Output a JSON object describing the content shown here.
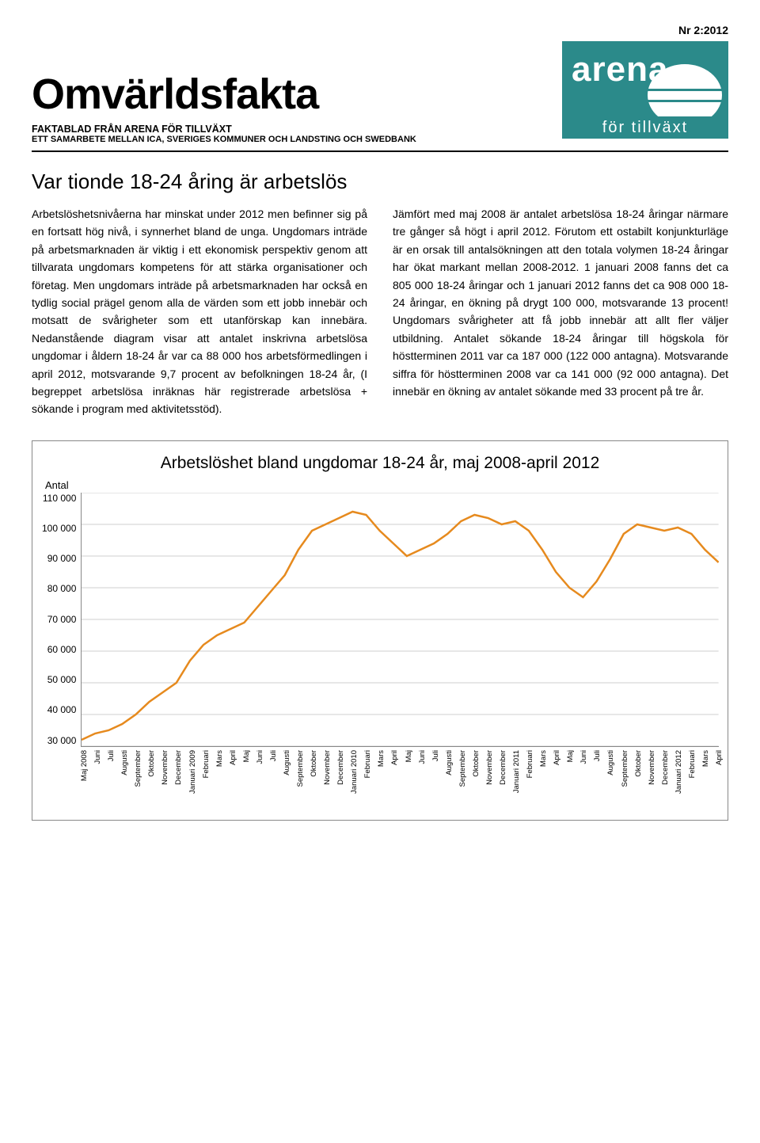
{
  "issue_label": "Nr 2:2012",
  "header": {
    "title": "Omvärldsfakta",
    "subtitle1": "FAKTABLAD FRÅN ARENA FÖR TILLVÄXT",
    "subtitle2": "ETT SAMARBETE MELLAN ICA, SVERIGES KOMMUNER OCH LANDSTING OCH SWEDBANK",
    "logo_top": "arena",
    "logo_bottom": "för tillväxt",
    "logo_bg": "#2b8a8a",
    "logo_circle": "#ffffff",
    "logo_text": "#ffffff"
  },
  "article": {
    "headline": "Var tionde 18-24 åring är arbetslös",
    "col1": "Arbetslöshetsnivåerna har minskat under 2012 men befinner sig på en fortsatt hög nivå, i synnerhet bland de unga. Ungdomars inträde på arbetsmarknaden är viktig i ett ekonomisk perspektiv genom att tillvarata ungdomars kompetens för att stärka organisationer och företag. Men ungdomars inträde på arbetsmarknaden har också en tydlig social prägel genom alla de värden som ett jobb innebär och motsatt de svårigheter som ett utanförskap kan innebära.    Nedanstående diagram visar att antalet inskrivna arbetslösa ungdomar i åldern 18-24 år var  ca 88 000 hos arbetsförmedlingen i april 2012, motsvarande 9,7 procent av befolkningen 18-24 år, (I begreppet arbetslösa inräknas här registrerade arbetslösa + sökande i program med aktivitetsstöd).",
    "col2": "Jämfört med maj 2008 är antalet arbetslösa 18-24 åringar närmare tre gånger så högt i april 2012. Förutom ett ostabilt konjunkturläge är en orsak till antalsökningen att den totala volymen 18-24 åringar har ökat markant mellan 2008-2012. 1 januari 2008 fanns det ca 805 000 18-24 åringar och 1 januari 2012 fanns det ca 908 000 18-24 åringar, en ökning på drygt 100 000, motsvarande 13 procent!  Ungdomars svårigheter att få jobb innebär att allt fler väljer utbildning. Antalet sökande 18-24 åringar till högskola för höstterminen 2011 var ca 187 000 (122 000 antagna). Motsvarande siffra för höstterminen 2008 var ca 141 000 (92 000 antagna). Det innebär en ökning av antalet sökande med 33 procent på tre år."
  },
  "chart": {
    "title": "Arbetslöshet bland ungdomar 18-24 år, maj 2008-april 2012",
    "type": "line",
    "ylabel": "Antal",
    "ylim": [
      30000,
      110000
    ],
    "ytick_step": 10000,
    "yticks": [
      "110 000",
      "100 000",
      "90 000",
      "80 000",
      "70 000",
      "60 000",
      "50 000",
      "40 000",
      "30 000"
    ],
    "line_color": "#e68a1e",
    "line_width": 2.5,
    "grid_color": "#cfcfcf",
    "background_color": "#ffffff",
    "x_labels": [
      "Maj 2008",
      "Juni",
      "Juli",
      "Augusti",
      "September",
      "Oktober",
      "November",
      "December",
      "Januari 2009",
      "Februari",
      "Mars",
      "April",
      "Maj",
      "Juni",
      "Juli",
      "Augusti",
      "September",
      "Oktober",
      "November",
      "December",
      "Januari 2010",
      "Februari",
      "Mars",
      "April",
      "Maj",
      "Juni",
      "Juli",
      "Augusti",
      "September",
      "Oktober",
      "November",
      "December",
      "Januari 2011",
      "Februari",
      "Mars",
      "April",
      "Maj",
      "Juni",
      "Juli",
      "Augusti",
      "September",
      "Oktober",
      "November",
      "December",
      "Januari 2012",
      "Februari",
      "Mars",
      "April"
    ],
    "values": [
      32000,
      34000,
      35000,
      37000,
      40000,
      44000,
      47000,
      50000,
      57000,
      62000,
      65000,
      67000,
      69000,
      74000,
      79000,
      84000,
      92000,
      98000,
      100000,
      102000,
      104000,
      103000,
      98000,
      94000,
      90000,
      92000,
      94000,
      97000,
      101000,
      103000,
      102000,
      100000,
      101000,
      98000,
      92000,
      85000,
      80000,
      77000,
      82000,
      89000,
      97000,
      100000,
      99000,
      98000,
      99000,
      97000,
      92000,
      88000
    ]
  }
}
